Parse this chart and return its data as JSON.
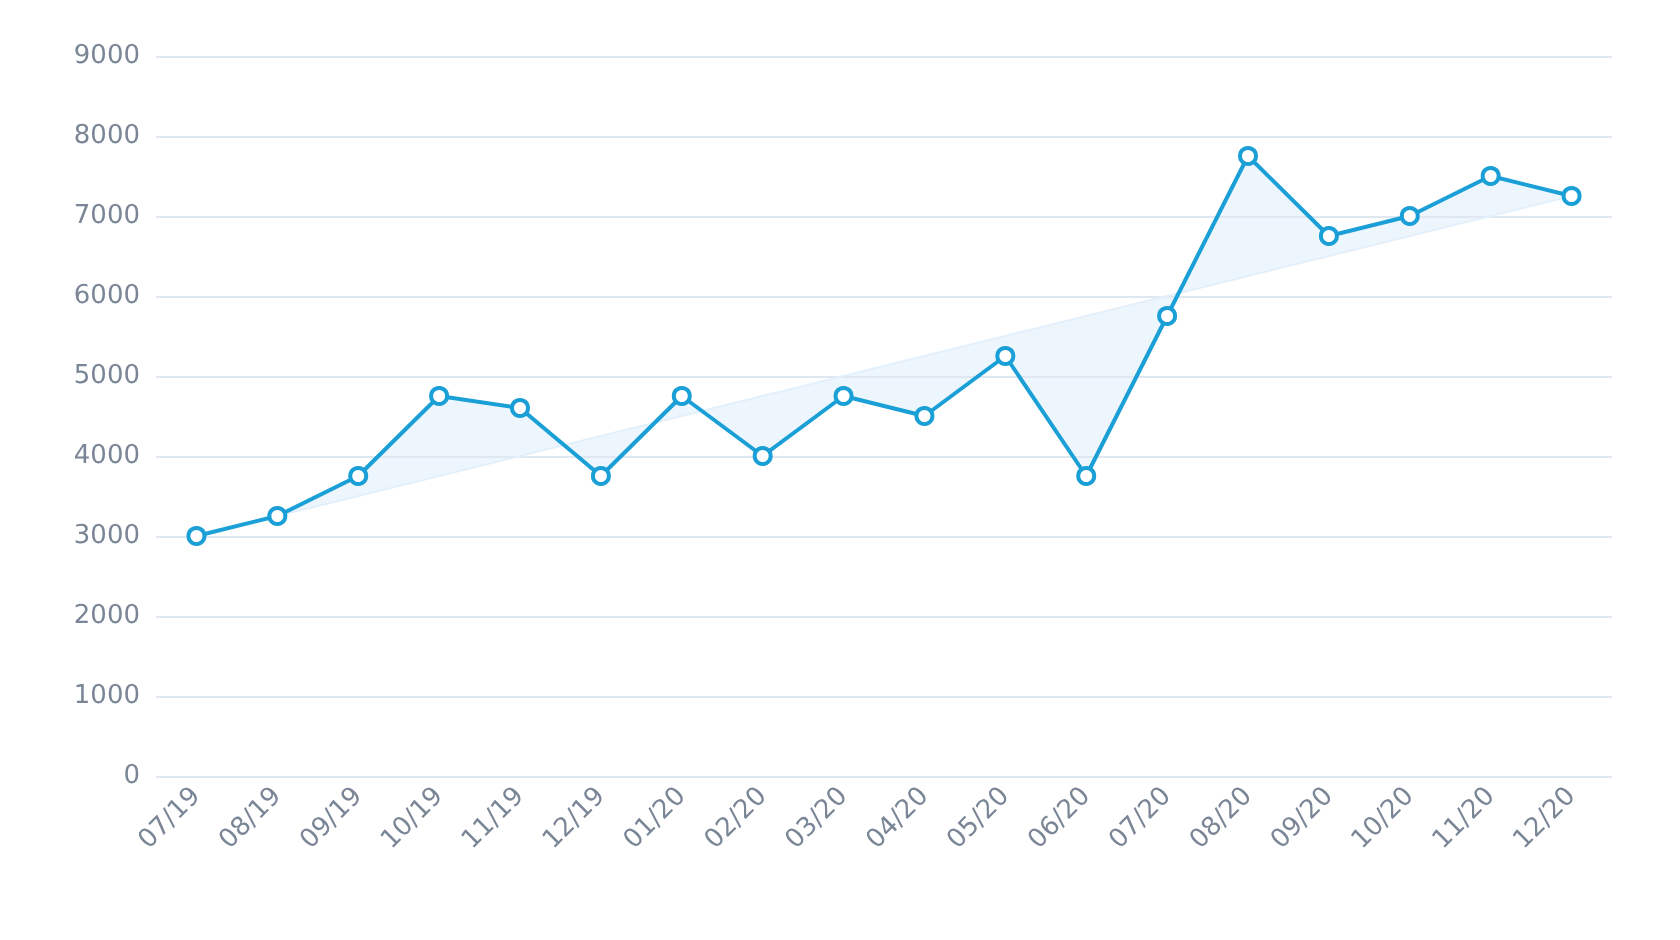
{
  "chart_data": {
    "type": "line",
    "categories": [
      "07/19",
      "08/19",
      "09/19",
      "10/19",
      "11/19",
      "12/19",
      "01/20",
      "02/20",
      "03/20",
      "04/20",
      "05/20",
      "06/20",
      "07/20",
      "08/20",
      "09/20",
      "10/20",
      "11/20",
      "12/20"
    ],
    "series": [
      {
        "color": "#1a9fd6",
        "marker": "circle",
        "values": [
          3000,
          3250,
          3750,
          4750,
          4600,
          3750,
          4750,
          4000,
          4750,
          4500,
          5250,
          3750,
          5750,
          7750,
          6750,
          7000,
          7500,
          7250
        ]
      },
      {
        "type": "line",
        "color": "#e3f0fb",
        "marker": "none",
        "values": [
          3000,
          3250,
          3500,
          3750,
          4000,
          4250,
          4500,
          4750,
          5000,
          5250,
          5500,
          5750,
          6000,
          6250,
          6500,
          6750,
          7000,
          7250
        ]
      }
    ],
    "ylim": [
      0,
      9000
    ],
    "yticks": [
      0,
      1000,
      2000,
      3000,
      4000,
      5000,
      6000,
      7000,
      8000,
      9000
    ],
    "grid": "y"
  }
}
